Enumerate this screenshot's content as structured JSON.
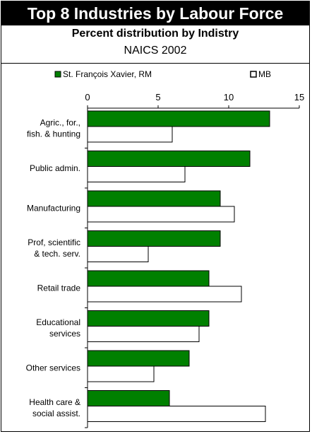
{
  "title": "Top 8 Industries by Labour Force",
  "subtitle": "Percent distribution by Indistry",
  "subtitle2": "NAICS 2002",
  "chart_data": {
    "type": "bar",
    "orientation": "horizontal",
    "categories": [
      "Agric., for.,\nfish. & hunting",
      "Public admin.",
      "Manufacturing",
      "Prof, scientific\n& tech. serv.",
      "Retail trade",
      "Educational\nservices",
      "Other services",
      "Health care &\nsocial assist."
    ],
    "series": [
      {
        "name": "St. François Xavier, RM",
        "color": "#008000",
        "values": [
          12.9,
          11.5,
          9.4,
          9.4,
          8.6,
          8.6,
          7.2,
          5.8
        ]
      },
      {
        "name": "MB",
        "color": "#ffffff",
        "values": [
          6.0,
          6.9,
          10.4,
          4.3,
          10.9,
          7.9,
          4.7,
          12.6
        ]
      }
    ],
    "xlim": [
      0,
      15
    ],
    "xticks": [
      0,
      5,
      10,
      15
    ],
    "legend_position": "top",
    "grid": false
  }
}
